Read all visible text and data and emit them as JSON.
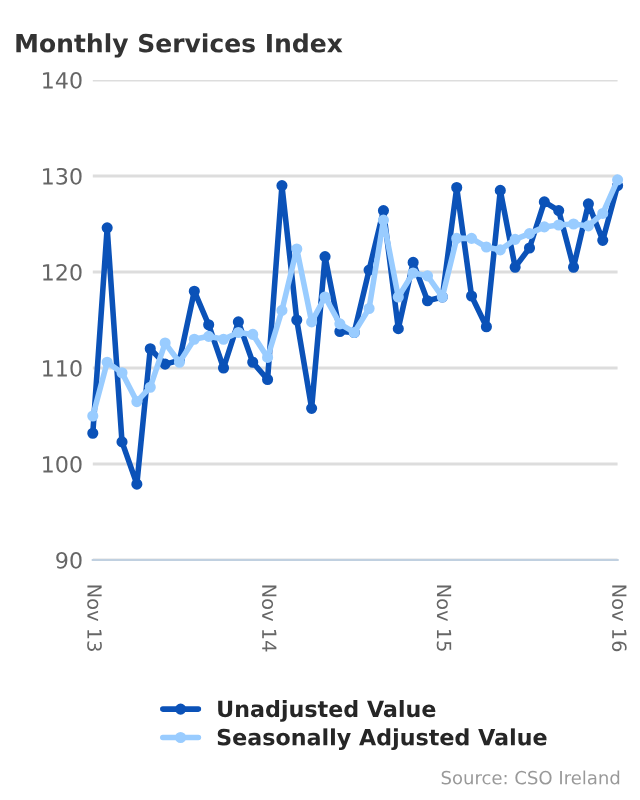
{
  "chart_data": {
    "type": "line",
    "title": "Monthly Services Index",
    "x": [
      "2013-11",
      "2013-12",
      "2014-01",
      "2014-02",
      "2014-03",
      "2014-04",
      "2014-05",
      "2014-06",
      "2014-07",
      "2014-08",
      "2014-09",
      "2014-10",
      "2014-11",
      "2014-12",
      "2015-01",
      "2015-02",
      "2015-03",
      "2015-04",
      "2015-05",
      "2015-06",
      "2015-07",
      "2015-08",
      "2015-09",
      "2015-10",
      "2015-11",
      "2015-12",
      "2016-01",
      "2016-02",
      "2016-03",
      "2016-04",
      "2016-05",
      "2016-06",
      "2016-07",
      "2016-08",
      "2016-09",
      "2016-10",
      "2016-11"
    ],
    "series": [
      {
        "name": "Unadjusted Value",
        "color": "#0b52b8",
        "values": [
          103.2,
          124.6,
          102.3,
          97.9,
          112,
          110.4,
          110.8,
          118,
          114.5,
          110,
          114.8,
          110.6,
          108.8,
          129,
          115,
          105.8,
          121.6,
          113.8,
          113.7,
          120.2,
          126.4,
          114.1,
          121,
          117,
          117.4,
          128.8,
          117.5,
          114.3,
          128.5,
          120.5,
          122.5,
          127.3,
          126.4,
          120.5,
          127.1,
          123.3,
          129
        ]
      },
      {
        "name": "Seasonally Adjusted Value",
        "color": "#99ccff",
        "values": [
          105,
          110.6,
          109.5,
          106.5,
          108,
          112.6,
          110.6,
          113,
          113.3,
          113,
          113.7,
          113.5,
          111.1,
          116,
          122.4,
          114.8,
          117.4,
          114.6,
          113.7,
          116.2,
          125.4,
          117.4,
          119.9,
          119.6,
          117.4,
          123.5,
          123.5,
          122.6,
          122.3,
          123.4,
          124,
          124.7,
          124.9,
          125,
          124.8,
          126.1,
          129.6
        ]
      }
    ],
    "xlim": [
      "2013-11",
      "2016-11"
    ],
    "xticks": [
      {
        "value": "2013-11",
        "label": "Nov 13"
      },
      {
        "value": "2014-11",
        "label": "Nov 14"
      },
      {
        "value": "2015-11",
        "label": "Nov 15"
      },
      {
        "value": "2016-11",
        "label": "Nov 16"
      }
    ],
    "ylim": [
      90,
      140
    ],
    "yticks": [
      90,
      100,
      110,
      120,
      130,
      140
    ],
    "grid": "y",
    "legend": "bottom",
    "marker": "circle",
    "line_style": "solid",
    "annotations": [
      "Source: CSO Ireland"
    ]
  }
}
